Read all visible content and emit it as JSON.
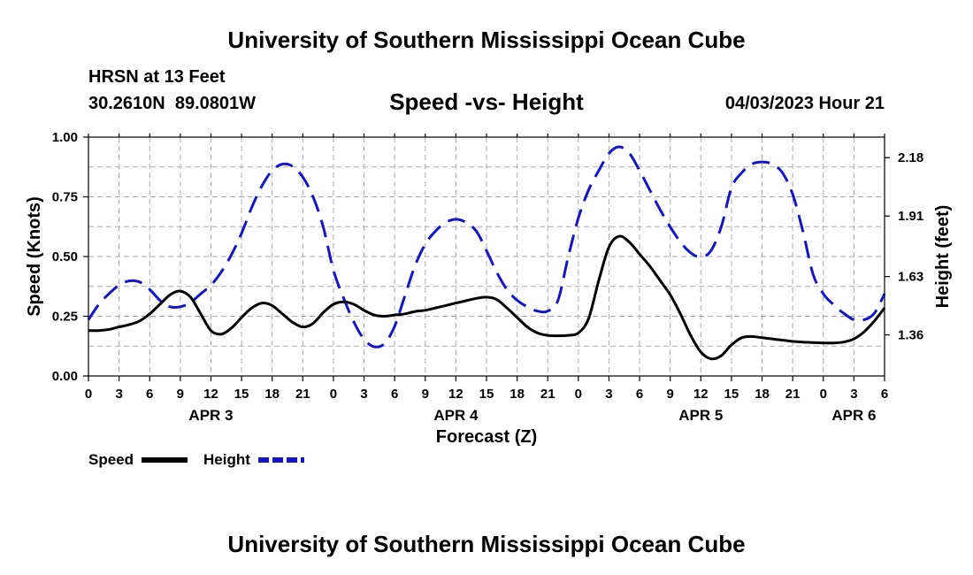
{
  "header": {
    "title": "University of Southern Mississippi Ocean Cube",
    "station": "HRSN at 13 Feet",
    "coords": "30.2610N  89.0801W",
    "subtitle": "Speed -vs- Height",
    "datetime": "04/03/2023 Hour 21"
  },
  "footer": {
    "title": "University of Southern Mississippi Ocean Cube"
  },
  "colors": {
    "speed": "#000000",
    "height": "#1515c8",
    "grid": "#aaaaaa"
  },
  "chart_data": {
    "type": "line",
    "title": "Speed -vs- Height",
    "xlabel": "Forecast (Z)",
    "ylabel": "Speed (Knots)",
    "y2label": "Height (feet)",
    "x_unit": "hours from APR 3 00Z",
    "xlim": [
      0,
      78
    ],
    "ylim": [
      0,
      1
    ],
    "y2lim": [
      1.17,
      2.275
    ],
    "grid": true,
    "legend_position": "bottom-left",
    "x_ticks": [
      0,
      3,
      6,
      9,
      12,
      15,
      18,
      21,
      24,
      27,
      30,
      33,
      36,
      39,
      42,
      45,
      48,
      51,
      54,
      57,
      60,
      63,
      66,
      69,
      72,
      75,
      78
    ],
    "x_tick_labels": [
      "0",
      "3",
      "6",
      "9",
      "12",
      "15",
      "18",
      "21",
      "0",
      "3",
      "6",
      "9",
      "12",
      "15",
      "18",
      "21",
      "0",
      "3",
      "6",
      "9",
      "12",
      "15",
      "18",
      "21",
      "0",
      "3",
      "6"
    ],
    "day_labels": [
      {
        "label": "APR 3",
        "x": 12
      },
      {
        "label": "APR 4",
        "x": 36
      },
      {
        "label": "APR 5",
        "x": 60
      },
      {
        "label": "APR 6",
        "x": 75
      }
    ],
    "y_ticks": [
      0,
      0.25,
      0.5,
      0.75,
      1.0
    ],
    "y_tick_labels": [
      "0.00",
      "0.25",
      "0.50",
      "0.75",
      "1.00"
    ],
    "y2_ticks": [
      1.36,
      1.63,
      1.91,
      2.18
    ],
    "y2_tick_labels": [
      "1.36",
      "1.63",
      "1.91",
      "2.18"
    ],
    "legend": [
      {
        "label": "Speed",
        "style": "solid"
      },
      {
        "label": "Height",
        "style": "dashed"
      }
    ],
    "series": [
      {
        "name": "Speed",
        "axis": "left",
        "style": "solid",
        "x": [
          0,
          1,
          2,
          3,
          4,
          5,
          6,
          7,
          8,
          9,
          10,
          11,
          12,
          13,
          14,
          15,
          16,
          17,
          18,
          19,
          20,
          21,
          22,
          23,
          24,
          25,
          26,
          27,
          28,
          29,
          30,
          31,
          32,
          33,
          34,
          35,
          36,
          37,
          38,
          39,
          40,
          41,
          42,
          43,
          44,
          45,
          46,
          47,
          48,
          49,
          50,
          51,
          52,
          53,
          54,
          55,
          56,
          57,
          58,
          59,
          60,
          61,
          62,
          63,
          64,
          65,
          66,
          67,
          68,
          69,
          70,
          71,
          72,
          73,
          74,
          75,
          76,
          77,
          78
        ],
        "values": [
          0.19,
          0.19,
          0.195,
          0.205,
          0.215,
          0.23,
          0.26,
          0.3,
          0.34,
          0.355,
          0.33,
          0.26,
          0.19,
          0.175,
          0.2,
          0.245,
          0.285,
          0.305,
          0.295,
          0.26,
          0.225,
          0.205,
          0.22,
          0.265,
          0.3,
          0.31,
          0.3,
          0.275,
          0.255,
          0.25,
          0.255,
          0.26,
          0.27,
          0.275,
          0.285,
          0.295,
          0.305,
          0.315,
          0.325,
          0.33,
          0.32,
          0.285,
          0.245,
          0.205,
          0.18,
          0.17,
          0.168,
          0.17,
          0.18,
          0.24,
          0.4,
          0.54,
          0.585,
          0.56,
          0.51,
          0.46,
          0.4,
          0.34,
          0.26,
          0.17,
          0.1,
          0.072,
          0.085,
          0.13,
          0.16,
          0.165,
          0.16,
          0.155,
          0.15,
          0.145,
          0.142,
          0.14,
          0.138,
          0.138,
          0.142,
          0.155,
          0.185,
          0.23,
          0.285
        ]
      },
      {
        "name": "Height",
        "axis": "right",
        "style": "dashed",
        "x": [
          0,
          1,
          2,
          3,
          4,
          5,
          6,
          7,
          8,
          9,
          10,
          11,
          12,
          13,
          14,
          15,
          16,
          17,
          18,
          19,
          20,
          21,
          22,
          23,
          24,
          25,
          26,
          27,
          28,
          29,
          30,
          31,
          32,
          33,
          34,
          35,
          36,
          37,
          38,
          39,
          40,
          41,
          42,
          43,
          44,
          45,
          46,
          47,
          48,
          49,
          50,
          51,
          52,
          53,
          54,
          55,
          56,
          57,
          58,
          59,
          60,
          61,
          62,
          63,
          64,
          65,
          66,
          67,
          68,
          69,
          70,
          71,
          72,
          73,
          74,
          75,
          76,
          77,
          78
        ],
        "values": [
          1.43,
          1.5,
          1.55,
          1.59,
          1.61,
          1.605,
          1.57,
          1.52,
          1.49,
          1.49,
          1.51,
          1.55,
          1.59,
          1.65,
          1.73,
          1.83,
          1.95,
          2.05,
          2.12,
          2.15,
          2.14,
          2.09,
          2.0,
          1.86,
          1.66,
          1.53,
          1.42,
          1.34,
          1.305,
          1.32,
          1.4,
          1.54,
          1.68,
          1.78,
          1.84,
          1.88,
          1.895,
          1.88,
          1.84,
          1.75,
          1.65,
          1.57,
          1.52,
          1.49,
          1.47,
          1.47,
          1.52,
          1.72,
          1.9,
          2.03,
          2.12,
          2.2,
          2.23,
          2.2,
          2.12,
          2.03,
          1.94,
          1.86,
          1.79,
          1.74,
          1.72,
          1.75,
          1.86,
          2.04,
          2.11,
          2.15,
          2.16,
          2.15,
          2.11,
          2.01,
          1.84,
          1.64,
          1.55,
          1.5,
          1.46,
          1.43,
          1.43,
          1.46,
          1.55
        ]
      }
    ]
  }
}
